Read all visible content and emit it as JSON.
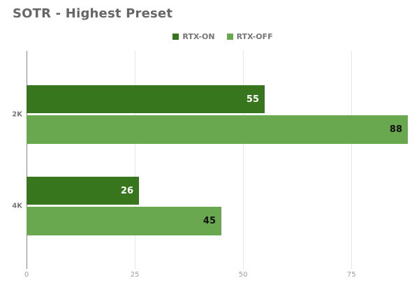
{
  "chart_data": {
    "type": "bar",
    "orientation": "horizontal",
    "title": "SOTR - Highest Preset",
    "categories": [
      "2K",
      "4K"
    ],
    "series": [
      {
        "name": "RTX-ON",
        "color": "#38761d",
        "value_label_color": "#ffffff",
        "values": [
          55,
          26
        ]
      },
      {
        "name": "RTX-OFF",
        "color": "#6aa84f",
        "value_label_color": "#111111",
        "values": [
          88,
          45
        ]
      }
    ],
    "xlabel": "",
    "ylabel": "",
    "x_tick_labels": [
      "0",
      "25",
      "50",
      "75"
    ],
    "x_tick_values": [
      0,
      25,
      50,
      75
    ],
    "xlim": [
      0,
      90.6
    ],
    "grid": true,
    "legend_position": "top-center",
    "value_label_placement": "inside-end"
  },
  "colors": {
    "background": "#ffffff",
    "title_text": "#666666",
    "legend_text": "#757575",
    "category_text": "#757575",
    "tick_text": "#9e9e9e",
    "gridline": "#e6e6e6",
    "baseline": "#888888"
  }
}
